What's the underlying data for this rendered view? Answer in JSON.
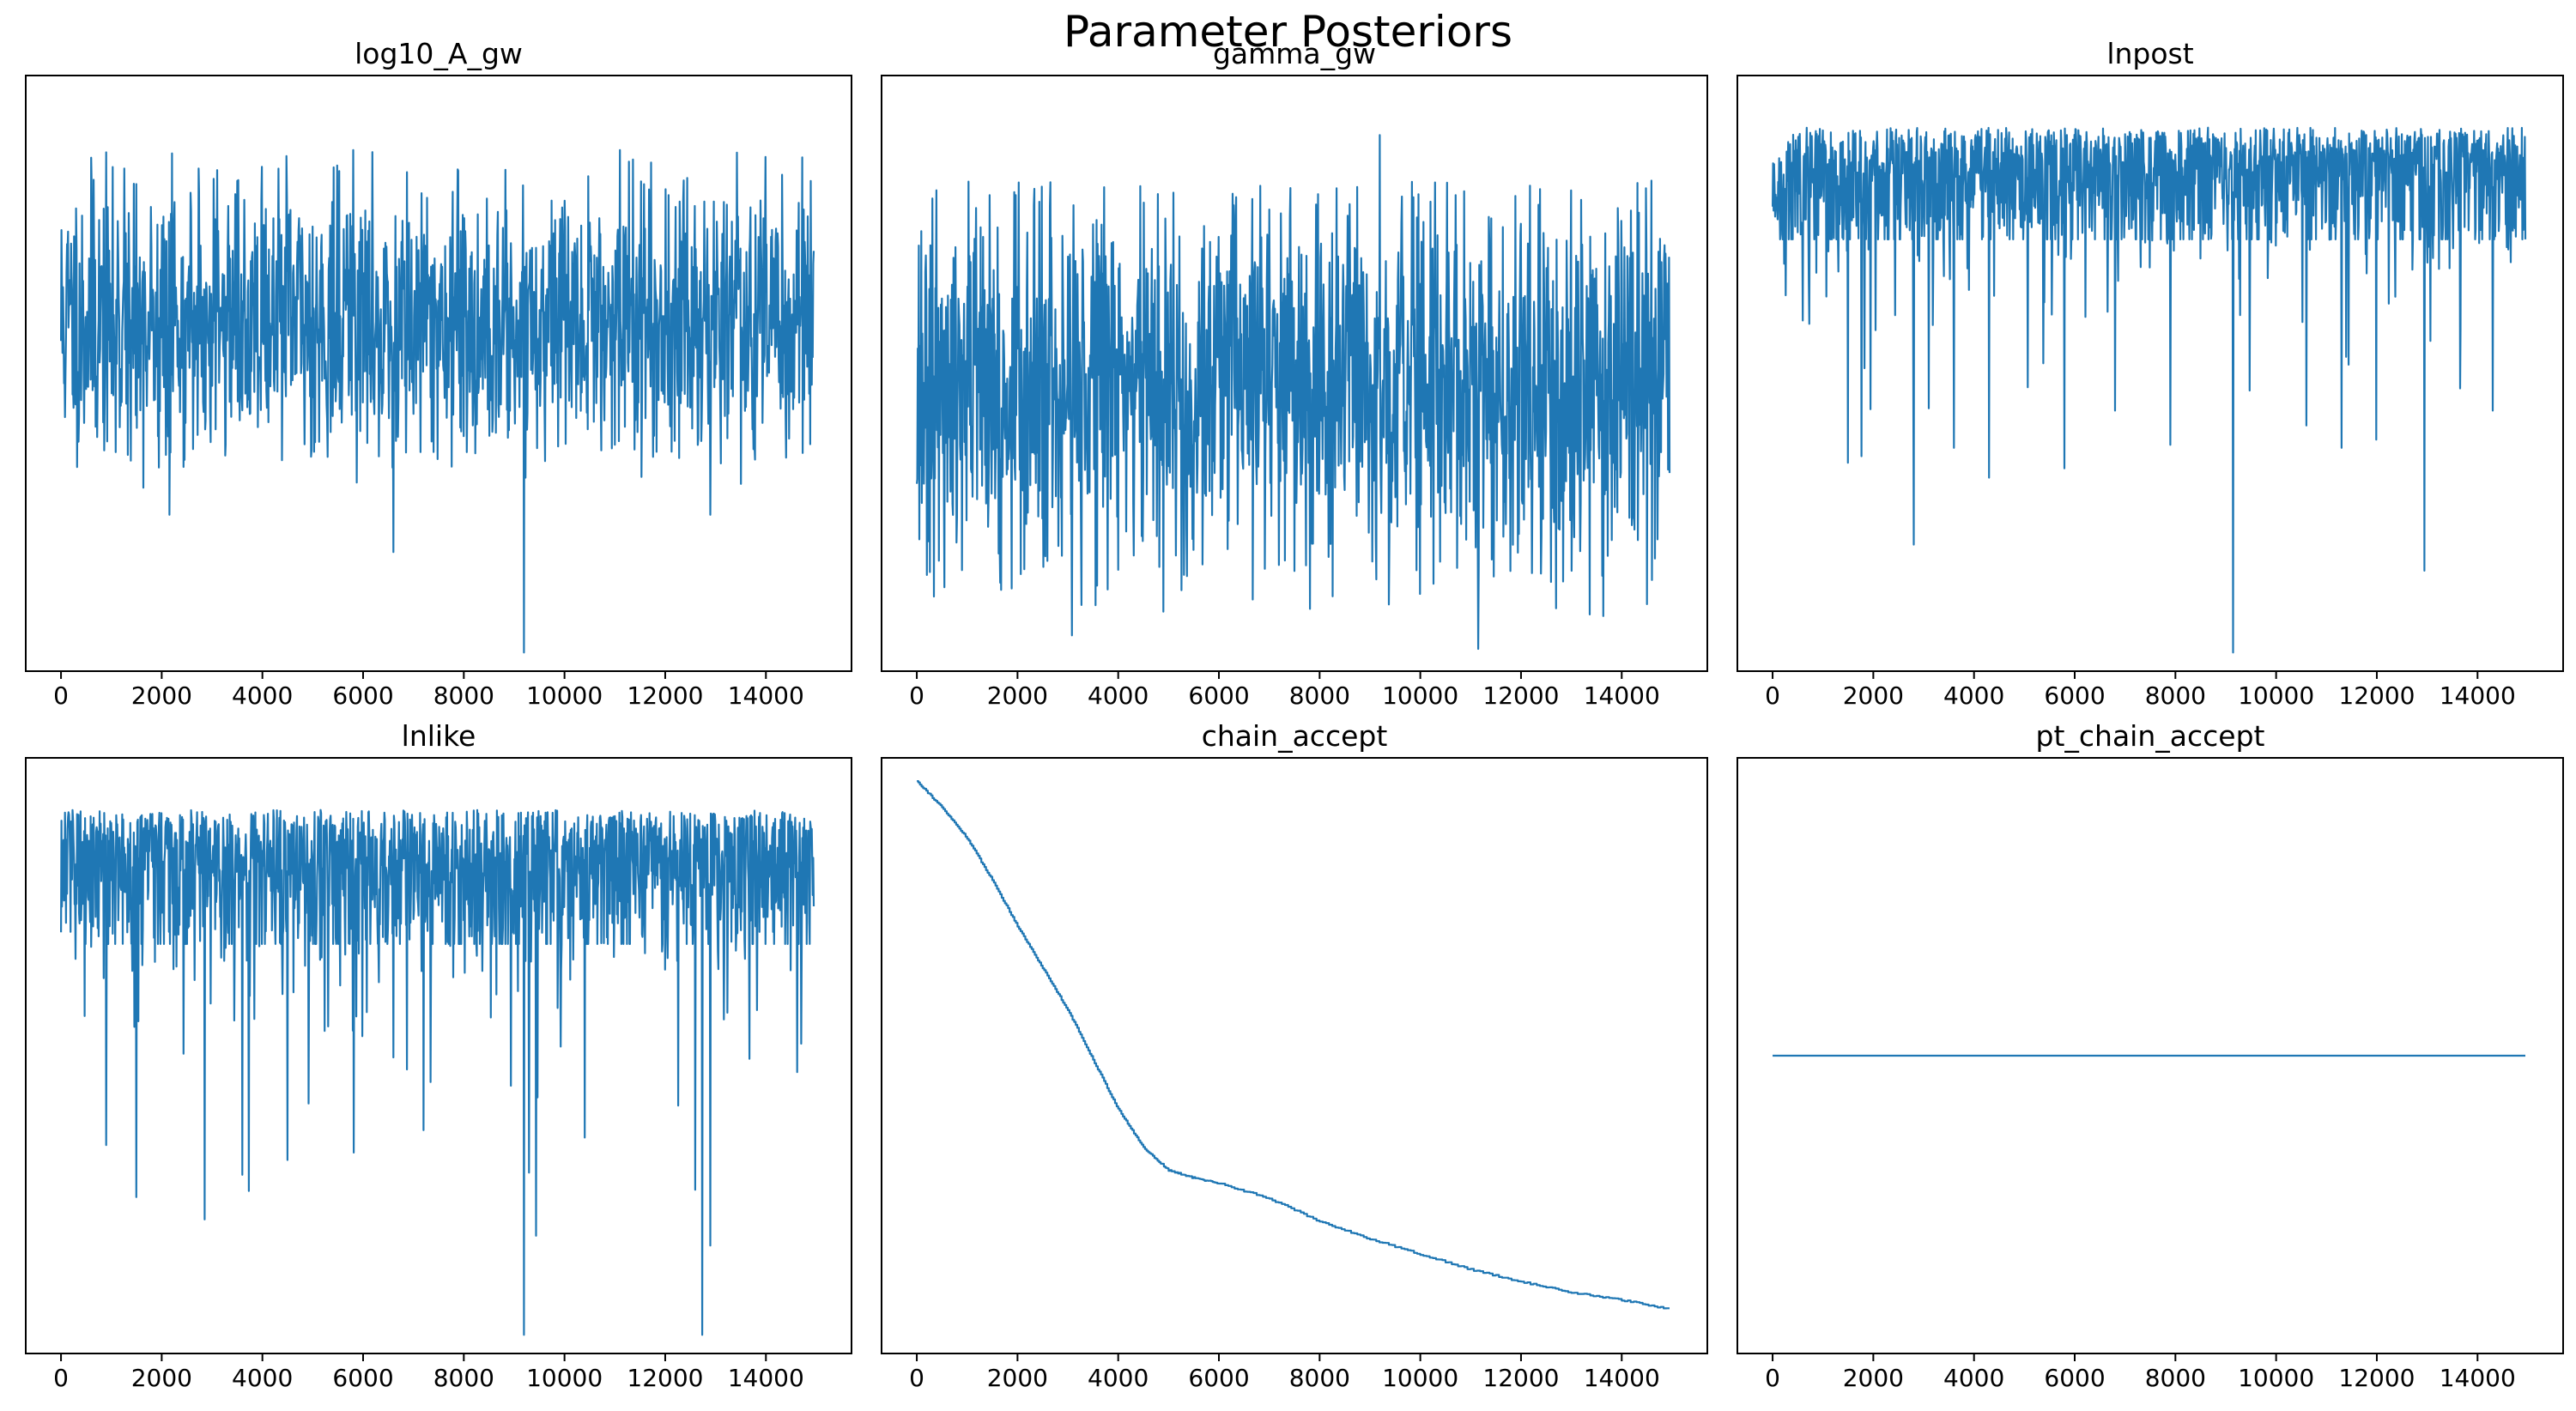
{
  "figure": {
    "title": "Parameter Posteriors",
    "line_color": "#1f77b4"
  },
  "chart_data": [
    {
      "type": "line",
      "title": "log10_A_gw",
      "xlabel": "",
      "ylabel": "",
      "xlim": [
        -700,
        15700
      ],
      "ylim": [
        -4.0,
        4.0
      ],
      "xticks": [
        0,
        2000,
        4000,
        6000,
        8000,
        10000,
        12000,
        14000
      ],
      "yticks": [],
      "grid": false,
      "series": [
        {
          "x_start": 0,
          "x_end": 14950,
          "kind": "noise",
          "seed": 11,
          "center": 0.7,
          "spread": 0.95,
          "upper_envelope": 3.0,
          "lower_envelope": -0.9,
          "y_max": 3.0,
          "y_min": -3.75,
          "spikes_down": [
            [
              9200,
              -3.75
            ],
            [
              2150,
              -1.9
            ],
            [
              6600,
              -2.4
            ],
            [
              12900,
              -1.9
            ]
          ],
          "spikes_up": [
            [
              11100,
              3.0
            ],
            [
              650,
              2.6
            ]
          ]
        }
      ]
    },
    {
      "type": "line",
      "title": "gamma_gw",
      "xlabel": "",
      "ylabel": "",
      "xlim": [
        -700,
        15700
      ],
      "ylim": [
        -4.0,
        4.0
      ],
      "xticks": [
        0,
        2000,
        4000,
        6000,
        8000,
        10000,
        12000,
        14000
      ],
      "yticks": [],
      "grid": false,
      "series": [
        {
          "x_start": 0,
          "x_end": 14950,
          "kind": "noise",
          "seed": 23,
          "center": -0.1,
          "spread": 1.25,
          "upper_envelope": 2.6,
          "lower_envelope": -2.6,
          "y_max": 3.2,
          "y_min": -3.7,
          "spikes_down": [
            [
              11150,
              -3.7
            ],
            [
              4900,
              -3.2
            ],
            [
              14500,
              -3.1
            ]
          ],
          "spikes_up": [
            [
              9200,
              3.2
            ],
            [
              7000,
              2.2
            ]
          ]
        }
      ]
    },
    {
      "type": "line",
      "title": "lnpost",
      "xlabel": "",
      "ylabel": "",
      "xlim": [
        -700,
        15700
      ],
      "ylim": [
        -4.0,
        4.0
      ],
      "xticks": [
        0,
        2000,
        4000,
        6000,
        8000,
        10000,
        12000,
        14000
      ],
      "yticks": [],
      "grid": false,
      "series": [
        {
          "x_start": 0,
          "x_end": 14950,
          "kind": "capped",
          "seed": 37,
          "cap": 3.3,
          "band_bottom": 1.8,
          "tail": 0.9,
          "y_min": -3.75,
          "spikes_down": [
            [
              9150,
              -3.75
            ],
            [
              12950,
              -2.65
            ],
            [
              2800,
              -2.3
            ],
            [
              1500,
              -1.2
            ],
            [
              3600,
              -1.0
            ],
            [
              4300,
              -1.4
            ],
            [
              6800,
              -0.5
            ],
            [
              10600,
              -0.7
            ],
            [
              11300,
              -1.0
            ],
            [
              14300,
              -0.5
            ]
          ]
        }
      ]
    },
    {
      "type": "line",
      "title": "lnlike",
      "xlabel": "",
      "ylabel": "",
      "xlim": [
        -700,
        15700
      ],
      "ylim": [
        -4.0,
        4.0
      ],
      "xticks": [
        0,
        2000,
        4000,
        6000,
        8000,
        10000,
        12000,
        14000
      ],
      "yticks": [],
      "grid": false,
      "series": [
        {
          "x_start": 0,
          "x_end": 14950,
          "kind": "capped",
          "seed": 41,
          "cap": 3.3,
          "band_bottom": 1.5,
          "tail": 0.95,
          "y_min": -3.75,
          "spikes_down": [
            [
              9200,
              -3.75
            ],
            [
              12900,
              -2.55
            ],
            [
              2850,
              -2.2
            ],
            [
              1500,
              -1.9
            ],
            [
              3600,
              -1.6
            ],
            [
              4500,
              -1.4
            ],
            [
              900,
              -1.2
            ],
            [
              12600,
              -1.8
            ],
            [
              7200,
              -1.0
            ],
            [
              10400,
              -1.1
            ]
          ]
        }
      ]
    },
    {
      "type": "line",
      "title": "chain_accept",
      "xlabel": "",
      "ylabel": "",
      "xlim": [
        -700,
        15700
      ],
      "ylim": [
        0.2,
        0.98
      ],
      "xticks": [
        0,
        2000,
        4000,
        6000,
        8000,
        10000,
        12000,
        14000
      ],
      "yticks": [],
      "grid": false,
      "series": [
        {
          "x_start": 0,
          "x_end": 14950,
          "kind": "step",
          "x": [
            0,
            500,
            1000,
            1500,
            2000,
            2500,
            3000,
            3500,
            4000,
            4500,
            5000,
            5500,
            6000,
            7000,
            8000,
            9000,
            10000,
            11000,
            12000,
            13000,
            14000,
            14950
          ],
          "y": [
            0.95,
            0.915,
            0.875,
            0.82,
            0.76,
            0.705,
            0.65,
            0.585,
            0.52,
            0.47,
            0.44,
            0.43,
            0.423,
            0.403,
            0.373,
            0.35,
            0.33,
            0.31,
            0.294,
            0.28,
            0.27,
            0.258
          ]
        }
      ]
    },
    {
      "type": "line",
      "title": "pt_chain_accept",
      "xlabel": "",
      "ylabel": "",
      "xlim": [
        -700,
        15700
      ],
      "ylim": [
        -0.055,
        0.055
      ],
      "xticks": [
        0,
        2000,
        4000,
        6000,
        8000,
        10000,
        12000,
        14000
      ],
      "yticks": [],
      "grid": false,
      "series": [
        {
          "x_start": 0,
          "x_end": 14950,
          "kind": "constant",
          "value": 0.0
        }
      ]
    }
  ]
}
